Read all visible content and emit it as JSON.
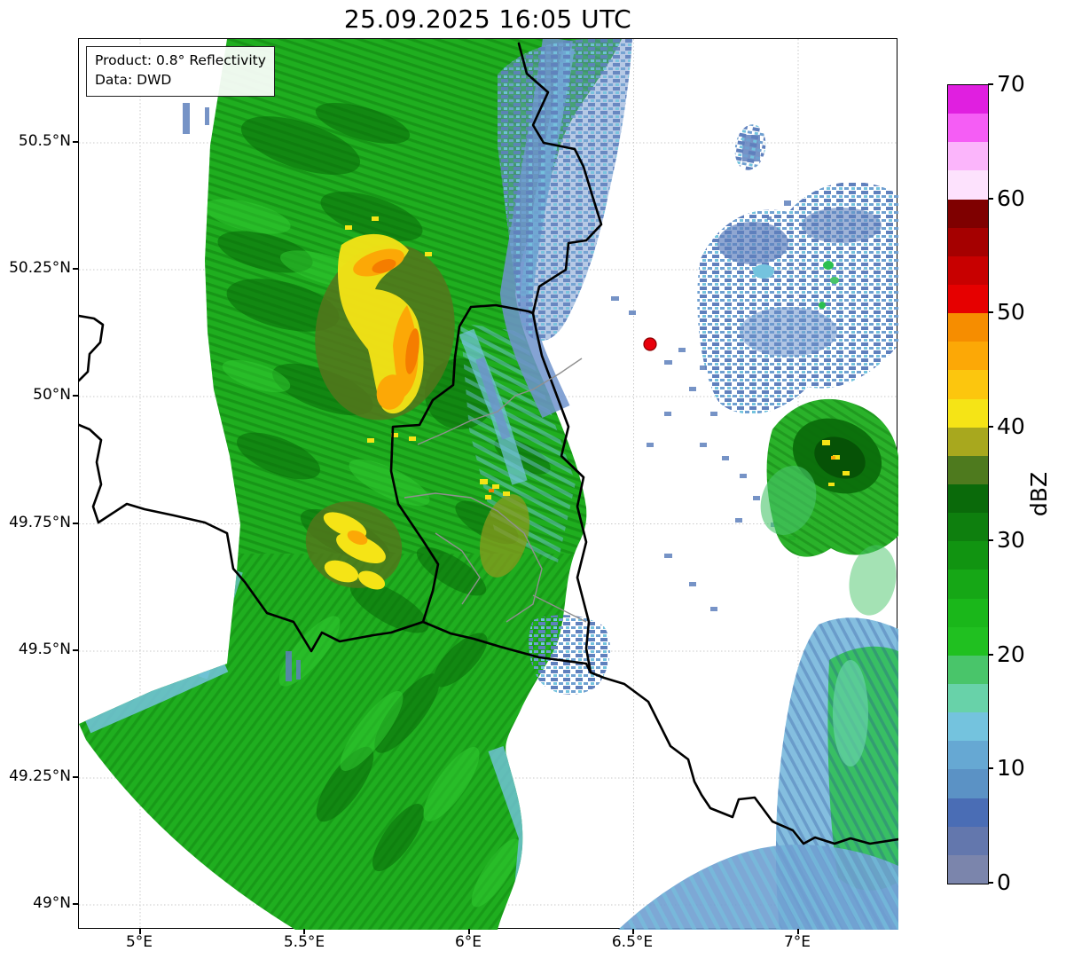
{
  "figure": {
    "title": "25.09.2025 16:05 UTC"
  },
  "info_box": {
    "product": "Product: 0.8° Reflectivity",
    "source": "Data: DWD"
  },
  "axes": {
    "lat_labels": [
      "50.5°N",
      "50.25°N",
      "50°N",
      "49.75°N",
      "49.5°N",
      "49.25°N",
      "49°N"
    ],
    "lon_labels": [
      "5°E",
      "5.5°E",
      "6°E",
      "6.5°E",
      "7°E"
    ]
  },
  "colorbar": {
    "label": "dBZ",
    "min": 0,
    "max": 70,
    "segment_step_dbz": 2.5,
    "tick_labels": [
      "0",
      "10",
      "20",
      "30",
      "40",
      "50",
      "60",
      "70"
    ],
    "segment_colors_bottom_to_top": [
      "#7b85ac",
      "#6377ad",
      "#4a6db5",
      "#5b92c5",
      "#66a8d3",
      "#74c3de",
      "#68d2a9",
      "#49c56a",
      "#20c020",
      "#1ab71a",
      "#16a716",
      "#119411",
      "#0e7f0e",
      "#0a6a0a",
      "#4e7a1e",
      "#a8a81e",
      "#f5e416",
      "#fcc60e",
      "#fca806",
      "#f68d00",
      "#e60000",
      "#c80000",
      "#a50000",
      "#7f0000",
      "#fde2fd",
      "#fbb5fb",
      "#f55df5",
      "#e01fe0"
    ]
  },
  "map": {
    "radar_marker_color": "#e8000b",
    "country_border_color": "#000000",
    "region_border_color": "#909090"
  }
}
